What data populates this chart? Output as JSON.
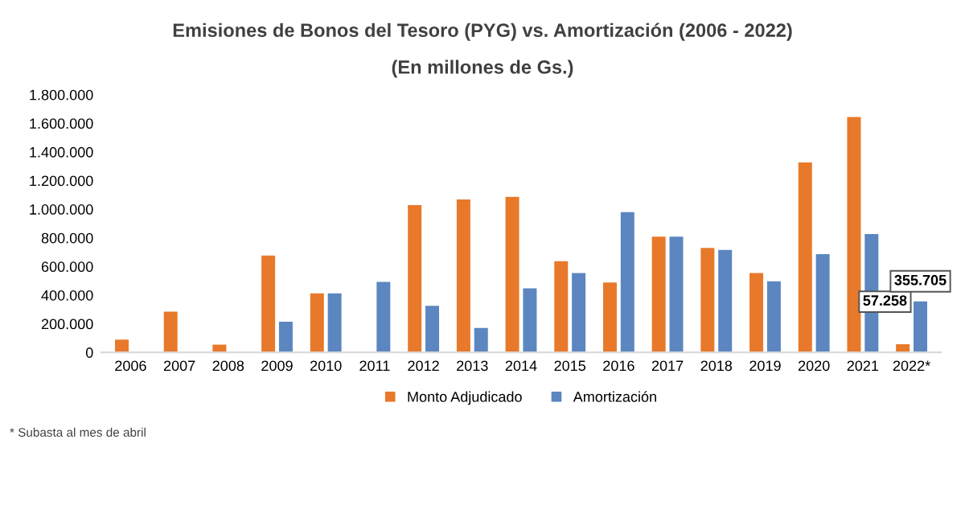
{
  "chart_data": {
    "type": "bar",
    "title": "Emisiones de Bonos del Tesoro (PYG) vs. Amortización (2006 - 2022)",
    "subtitle": "(En millones de Gs.)",
    "categories": [
      "2006",
      "2007",
      "2008",
      "2009",
      "2010",
      "2011",
      "2012",
      "2013",
      "2014",
      "2015",
      "2016",
      "2017",
      "2018",
      "2019",
      "2020",
      "2021",
      "2022*"
    ],
    "series": [
      {
        "name": "Monto Adjudicado",
        "color": "#e8792a",
        "values": [
          90000,
          285000,
          55000,
          677000,
          413000,
          null,
          1029000,
          1068000,
          1086000,
          637000,
          488000,
          809000,
          730000,
          554000,
          1327000,
          1644000,
          57258
        ],
        "value_labels": [
          null,
          null,
          null,
          null,
          null,
          null,
          null,
          null,
          null,
          null,
          null,
          null,
          null,
          null,
          null,
          null,
          "57.258"
        ]
      },
      {
        "name": "Amortización",
        "color": "#5b86c0",
        "values": [
          null,
          null,
          null,
          215000,
          413000,
          492000,
          325000,
          171000,
          448000,
          554000,
          980000,
          809000,
          716000,
          497000,
          686000,
          826000,
          355705
        ],
        "value_labels": [
          null,
          null,
          null,
          null,
          null,
          null,
          null,
          null,
          null,
          null,
          null,
          null,
          null,
          null,
          null,
          null,
          "355.705"
        ]
      }
    ],
    "ylim": [
      0,
      1800000
    ],
    "yticks": [
      0,
      {
        "value": 200000,
        "label": "200.000"
      },
      {
        "value": 400000,
        "label": "400.000"
      },
      {
        "value": 600000,
        "label": "600.000"
      },
      {
        "value": 800000,
        "label": "800.000"
      },
      {
        "value": 1000000,
        "label": "1.000.000"
      },
      {
        "value": 1200000,
        "label": "1.200.000"
      },
      {
        "value": 1400000,
        "label": "1.400.000"
      },
      {
        "value": 1600000,
        "label": "1.600.000"
      },
      {
        "value": 1800000,
        "label": "1.800.000"
      }
    ],
    "legend": "bottom",
    "grid": false,
    "annotations": [
      "* Subasta al mes de abril"
    ]
  }
}
